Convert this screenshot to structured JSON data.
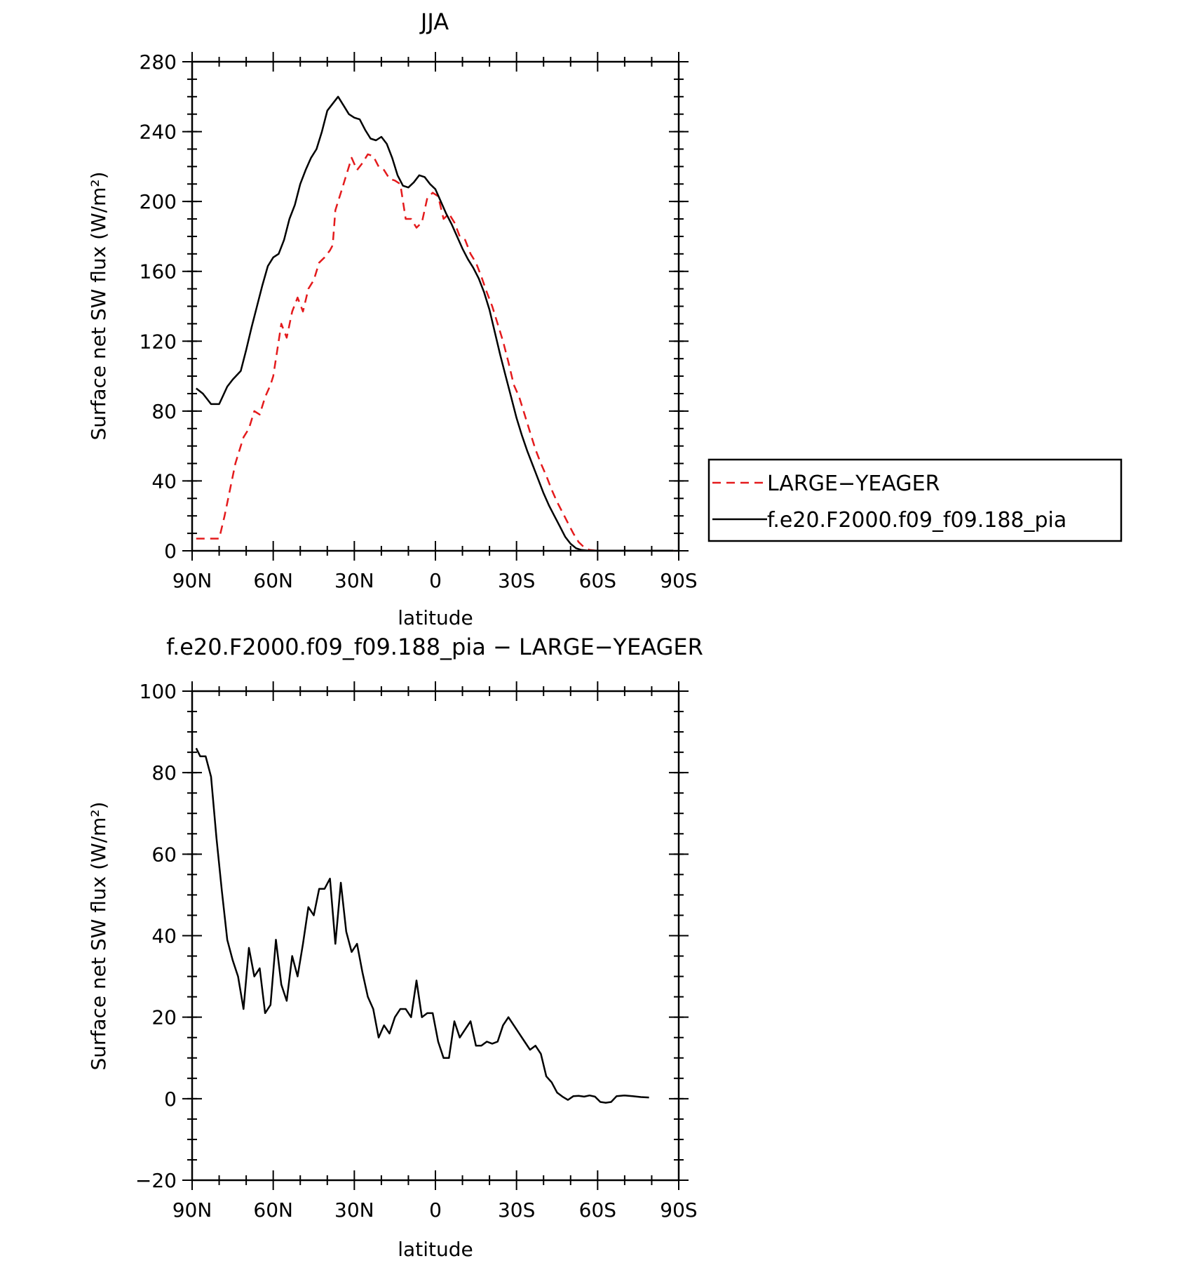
{
  "chart_data": [
    {
      "type": "line",
      "title": "JJA",
      "xlabel": "latitude",
      "ylabel": "Surface net SW flux (W/m²)",
      "ylim": [
        0,
        280
      ],
      "xlim": [
        90,
        -90
      ],
      "yticks": [
        "0",
        "40",
        "80",
        "120",
        "160",
        "200",
        "240",
        "280"
      ],
      "xtick_values": [
        90,
        60,
        30,
        0,
        -30,
        -60,
        -90
      ],
      "xtick_labels": [
        "90N",
        "60N",
        "30N",
        "0",
        "30S",
        "60S",
        "90S"
      ],
      "legend_position": "right",
      "series": [
        {
          "name": "LARGE−YEAGER",
          "color": "#e41a1c",
          "style": "dashed",
          "x": [
            88.5,
            86,
            83,
            80,
            78,
            76,
            74,
            72,
            71,
            69,
            67,
            65,
            63,
            61,
            60,
            58,
            57,
            55,
            53,
            51,
            49,
            47,
            45,
            43,
            41,
            39,
            38,
            37,
            35,
            33,
            31,
            29,
            27,
            25,
            23,
            21,
            19,
            17,
            15,
            13,
            11,
            9,
            7,
            5,
            3,
            1,
            -1,
            -3,
            -5,
            -7,
            -9,
            -11,
            -13,
            -15,
            -17,
            -19,
            -21,
            -23,
            -25,
            -27,
            -29,
            -31,
            -33,
            -35,
            -37,
            -39,
            -41,
            -43,
            -45,
            -47,
            -49,
            -51,
            -53,
            -55,
            -57,
            -59,
            -61,
            -63,
            -65,
            -67,
            -69,
            -71,
            -73,
            -75,
            -77,
            -80,
            -84,
            -88
          ],
          "values": [
            7,
            7,
            7,
            7,
            20,
            35,
            50,
            60,
            65,
            70,
            80,
            78,
            88,
            95,
            100,
            120,
            130,
            122,
            137,
            145,
            137,
            150,
            155,
            165,
            168,
            172,
            175,
            195,
            205,
            215,
            225,
            218,
            222,
            227,
            226,
            220,
            218,
            213,
            212,
            210,
            190,
            190,
            185,
            188,
            202,
            205,
            203,
            190,
            193,
            188,
            180,
            178,
            170,
            165,
            157,
            148,
            140,
            130,
            120,
            108,
            95,
            88,
            78,
            68,
            58,
            50,
            43,
            35,
            28,
            22,
            16,
            10,
            5,
            2,
            0.5,
            0.2,
            0.1,
            0.1,
            0.1,
            0.1,
            0.1,
            0.1,
            0.1,
            0.1,
            0.1,
            0.1,
            0.1,
            0.1
          ]
        },
        {
          "name": "f.e20.F2000.f09_f09.188_pia",
          "color": "#000000",
          "style": "solid",
          "x": [
            88.5,
            86,
            83,
            80,
            77,
            75,
            72,
            70,
            68,
            66,
            64,
            62,
            60,
            58,
            56,
            54,
            52,
            50,
            48,
            46,
            44,
            42,
            40,
            38,
            36,
            34,
            32,
            30,
            28,
            26,
            24,
            22,
            20,
            18,
            16,
            14,
            12,
            10,
            8,
            6,
            4,
            2,
            0,
            -2,
            -4,
            -6,
            -8,
            -10,
            -12,
            -14,
            -16,
            -18,
            -20,
            -22,
            -24,
            -26,
            -28,
            -30,
            -32,
            -34,
            -36,
            -38,
            -40,
            -42,
            -44,
            -46,
            -48,
            -50,
            -52,
            -54,
            -56,
            -58,
            -60,
            -62,
            -64,
            -66,
            -68,
            -70,
            -73,
            -76,
            -80,
            -84,
            -88
          ],
          "values": [
            93,
            90,
            84,
            84,
            94,
            98,
            103,
            115,
            128,
            140,
            152,
            163,
            168,
            170,
            178,
            190,
            198,
            210,
            218,
            225,
            230,
            240,
            252,
            256,
            260,
            255,
            250,
            248,
            247,
            241,
            236,
            235,
            237,
            233,
            225,
            215,
            209,
            208,
            211,
            215,
            214,
            210,
            207,
            200,
            193,
            187,
            180,
            173,
            167,
            162,
            156,
            148,
            138,
            125,
            112,
            100,
            88,
            76,
            66,
            57,
            49,
            41,
            33,
            26,
            20,
            14,
            8,
            4,
            1.5,
            0.5,
            0.2,
            0.1,
            0.1,
            0.1,
            0.1,
            0.1,
            0.1,
            0.1,
            0.1,
            0.1,
            0.1,
            0.1,
            0.1
          ]
        }
      ]
    },
    {
      "type": "line",
      "title": "f.e20.F2000.f09_f09.188_pia − LARGE−YEAGER",
      "xlabel": "latitude",
      "ylabel": "Surface net SW flux (W/m²)",
      "ylim": [
        -20,
        100
      ],
      "xlim": [
        90,
        -90
      ],
      "yticks": [
        "−20",
        "0",
        "20",
        "40",
        "60",
        "80",
        "100"
      ],
      "xtick_values": [
        90,
        60,
        30,
        0,
        -30,
        -60,
        -90
      ],
      "xtick_labels": [
        "90N",
        "60N",
        "30N",
        "0",
        "30S",
        "60S",
        "90S"
      ],
      "series": [
        {
          "color": "#000000",
          "style": "solid",
          "x": [
            88.5,
            87,
            85,
            83,
            81,
            79,
            77,
            75,
            73,
            71,
            69,
            67,
            65,
            63,
            61,
            59,
            57,
            55,
            53,
            51,
            49,
            47,
            45,
            43,
            41,
            39,
            37,
            35,
            33,
            31,
            29,
            27,
            25,
            23,
            21,
            19,
            17,
            15,
            13,
            11,
            9,
            7,
            5,
            3,
            1,
            -1,
            -3,
            -5,
            -7,
            -9,
            -11,
            -13,
            -15,
            -17,
            -19,
            -21,
            -23,
            -25,
            -27,
            -29,
            -31,
            -33,
            -35,
            -37,
            -39,
            -41,
            -43,
            -45,
            -47,
            -49,
            -51,
            -53,
            -55,
            -57,
            -59,
            -61,
            -63,
            -65,
            -67,
            -70,
            -73,
            -76,
            -79
          ],
          "values": [
            86,
            84,
            84,
            79,
            64,
            51,
            39,
            34,
            30,
            22,
            37,
            30,
            32,
            21,
            23,
            39,
            28,
            24,
            35,
            30,
            38,
            47,
            45,
            51.5,
            51.5,
            54,
            38,
            53,
            41,
            36,
            38,
            31,
            25,
            22,
            15,
            18,
            16,
            20,
            22,
            22,
            20,
            29,
            20,
            21,
            21,
            14,
            10,
            10,
            19,
            15,
            17,
            19,
            13,
            13,
            14,
            13.5,
            14,
            18,
            20,
            18,
            16,
            14,
            12,
            13,
            11,
            5.5,
            4,
            1.5,
            0.5,
            -0.3,
            0.6,
            0.7,
            0.5,
            0.8,
            0.5,
            -0.8,
            -1,
            -0.8,
            0.6,
            0.8,
            0.6,
            0.4,
            0.3
          ]
        }
      ]
    }
  ]
}
